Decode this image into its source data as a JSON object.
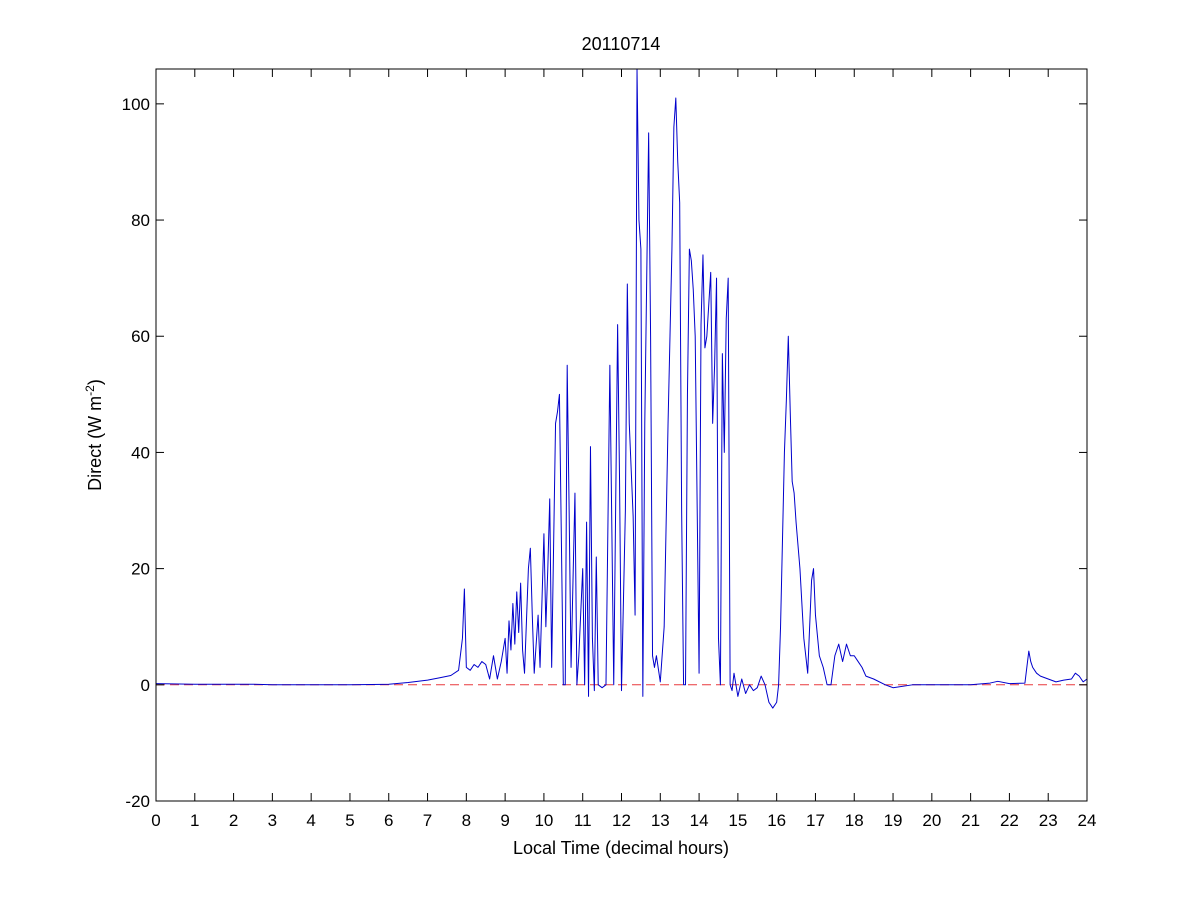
{
  "chart_data": {
    "type": "line",
    "title": "20110714",
    "xlabel": "Local Time (decimal hours)",
    "ylabel": {
      "main": "Direct (W m",
      "superscript": "-2",
      "close": ")"
    },
    "xlim": [
      0,
      24
    ],
    "ylim": [
      -20,
      106
    ],
    "xticks": [
      0,
      1,
      2,
      3,
      4,
      5,
      6,
      7,
      8,
      9,
      10,
      11,
      12,
      13,
      14,
      15,
      16,
      17,
      18,
      19,
      20,
      21,
      22,
      23,
      24
    ],
    "yticks": [
      -20,
      0,
      20,
      40,
      60,
      80,
      100
    ],
    "grid": false,
    "reference_line": {
      "y": 0,
      "color": "#e8383d",
      "style": "dashed"
    },
    "series": [
      {
        "color": "#0000cc",
        "points": [
          [
            0,
            0.2
          ],
          [
            1,
            0.1
          ],
          [
            2,
            0.1
          ],
          [
            2.5,
            0.1
          ],
          [
            3,
            0
          ],
          [
            4,
            0
          ],
          [
            5,
            0
          ],
          [
            6,
            0.1
          ],
          [
            6.5,
            0.4
          ],
          [
            7,
            0.8
          ],
          [
            7.3,
            1.2
          ],
          [
            7.6,
            1.6
          ],
          [
            7.8,
            2.5
          ],
          [
            7.9,
            8
          ],
          [
            7.95,
            16.5
          ],
          [
            8.0,
            3
          ],
          [
            8.1,
            2.5
          ],
          [
            8.2,
            3.5
          ],
          [
            8.3,
            3
          ],
          [
            8.4,
            4
          ],
          [
            8.5,
            3.5
          ],
          [
            8.6,
            1
          ],
          [
            8.7,
            5
          ],
          [
            8.8,
            1
          ],
          [
            8.9,
            4
          ],
          [
            9.0,
            8
          ],
          [
            9.05,
            2
          ],
          [
            9.1,
            11
          ],
          [
            9.15,
            6
          ],
          [
            9.2,
            14
          ],
          [
            9.25,
            7
          ],
          [
            9.3,
            16
          ],
          [
            9.35,
            9
          ],
          [
            9.4,
            17.5
          ],
          [
            9.45,
            6
          ],
          [
            9.5,
            2
          ],
          [
            9.6,
            20
          ],
          [
            9.65,
            23.5
          ],
          [
            9.7,
            12
          ],
          [
            9.75,
            2
          ],
          [
            9.8,
            7
          ],
          [
            9.85,
            12
          ],
          [
            9.9,
            3
          ],
          [
            10.0,
            26
          ],
          [
            10.05,
            10
          ],
          [
            10.1,
            20
          ],
          [
            10.15,
            32
          ],
          [
            10.2,
            3
          ],
          [
            10.3,
            45
          ],
          [
            10.35,
            47
          ],
          [
            10.4,
            50
          ],
          [
            10.45,
            25
          ],
          [
            10.5,
            0
          ],
          [
            10.55,
            0
          ],
          [
            10.6,
            55
          ],
          [
            10.65,
            30
          ],
          [
            10.7,
            3
          ],
          [
            10.75,
            18
          ],
          [
            10.8,
            33
          ],
          [
            10.85,
            0
          ],
          [
            10.9,
            5
          ],
          [
            11.0,
            20
          ],
          [
            11.05,
            0
          ],
          [
            11.1,
            28
          ],
          [
            11.15,
            -2
          ],
          [
            11.2,
            41
          ],
          [
            11.25,
            8
          ],
          [
            11.3,
            -1
          ],
          [
            11.35,
            22
          ],
          [
            11.4,
            0
          ],
          [
            11.5,
            -0.5
          ],
          [
            11.6,
            0
          ],
          [
            11.7,
            55
          ],
          [
            11.8,
            0
          ],
          [
            11.9,
            62
          ],
          [
            11.95,
            35
          ],
          [
            12.0,
            -1
          ],
          [
            12.1,
            30
          ],
          [
            12.15,
            69
          ],
          [
            12.2,
            45
          ],
          [
            12.3,
            29
          ],
          [
            12.35,
            12
          ],
          [
            12.4,
            106
          ],
          [
            12.45,
            80
          ],
          [
            12.5,
            75
          ],
          [
            12.55,
            -2
          ],
          [
            12.6,
            45
          ],
          [
            12.7,
            95
          ],
          [
            12.75,
            60
          ],
          [
            12.8,
            5
          ],
          [
            12.85,
            3
          ],
          [
            12.9,
            5
          ],
          [
            13.0,
            0.5
          ],
          [
            13.1,
            10
          ],
          [
            13.2,
            45
          ],
          [
            13.3,
            75
          ],
          [
            13.35,
            96
          ],
          [
            13.4,
            101
          ],
          [
            13.45,
            90
          ],
          [
            13.5,
            83
          ],
          [
            13.55,
            30
          ],
          [
            13.6,
            0
          ],
          [
            13.65,
            0
          ],
          [
            13.7,
            50
          ],
          [
            13.75,
            75
          ],
          [
            13.8,
            73
          ],
          [
            13.85,
            68
          ],
          [
            13.9,
            60
          ],
          [
            14.0,
            2
          ],
          [
            14.05,
            62
          ],
          [
            14.1,
            74
          ],
          [
            14.15,
            58
          ],
          [
            14.2,
            60
          ],
          [
            14.3,
            71
          ],
          [
            14.35,
            45
          ],
          [
            14.4,
            55
          ],
          [
            14.45,
            70
          ],
          [
            14.5,
            8
          ],
          [
            14.55,
            0
          ],
          [
            14.6,
            57
          ],
          [
            14.65,
            40
          ],
          [
            14.7,
            63
          ],
          [
            14.75,
            70
          ],
          [
            14.8,
            0
          ],
          [
            14.85,
            -1
          ],
          [
            14.9,
            2
          ],
          [
            15.0,
            -2
          ],
          [
            15.1,
            1
          ],
          [
            15.2,
            -1.5
          ],
          [
            15.3,
            0
          ],
          [
            15.4,
            -1
          ],
          [
            15.5,
            -0.5
          ],
          [
            15.6,
            1.5
          ],
          [
            15.7,
            0
          ],
          [
            15.8,
            -3
          ],
          [
            15.9,
            -4
          ],
          [
            16.0,
            -3
          ],
          [
            16.05,
            0
          ],
          [
            16.1,
            10
          ],
          [
            16.15,
            25
          ],
          [
            16.2,
            40
          ],
          [
            16.25,
            49
          ],
          [
            16.3,
            60
          ],
          [
            16.35,
            47
          ],
          [
            16.4,
            35
          ],
          [
            16.45,
            33
          ],
          [
            16.5,
            28
          ],
          [
            16.6,
            20
          ],
          [
            16.7,
            8
          ],
          [
            16.8,
            2
          ],
          [
            16.9,
            18
          ],
          [
            16.95,
            20
          ],
          [
            17.0,
            12
          ],
          [
            17.1,
            5
          ],
          [
            17.2,
            3
          ],
          [
            17.3,
            0
          ],
          [
            17.4,
            0
          ],
          [
            17.5,
            5
          ],
          [
            17.6,
            7
          ],
          [
            17.7,
            4
          ],
          [
            17.8,
            7
          ],
          [
            17.9,
            5
          ],
          [
            18.0,
            5
          ],
          [
            18.1,
            4
          ],
          [
            18.2,
            3
          ],
          [
            18.3,
            1.5
          ],
          [
            18.5,
            1
          ],
          [
            18.8,
            0
          ],
          [
            19.0,
            -0.5
          ],
          [
            19.5,
            0
          ],
          [
            20,
            0
          ],
          [
            20.5,
            0
          ],
          [
            21,
            0
          ],
          [
            21.5,
            0.3
          ],
          [
            21.7,
            0.6
          ],
          [
            22,
            0.2
          ],
          [
            22.4,
            0.3
          ],
          [
            22.5,
            5.8
          ],
          [
            22.55,
            4
          ],
          [
            22.6,
            3
          ],
          [
            22.7,
            2
          ],
          [
            22.8,
            1.5
          ],
          [
            23.0,
            1
          ],
          [
            23.2,
            0.5
          ],
          [
            23.4,
            0.8
          ],
          [
            23.6,
            1
          ],
          [
            23.7,
            2
          ],
          [
            23.8,
            1.5
          ],
          [
            23.9,
            0.5
          ],
          [
            24.0,
            1
          ]
        ]
      }
    ]
  }
}
